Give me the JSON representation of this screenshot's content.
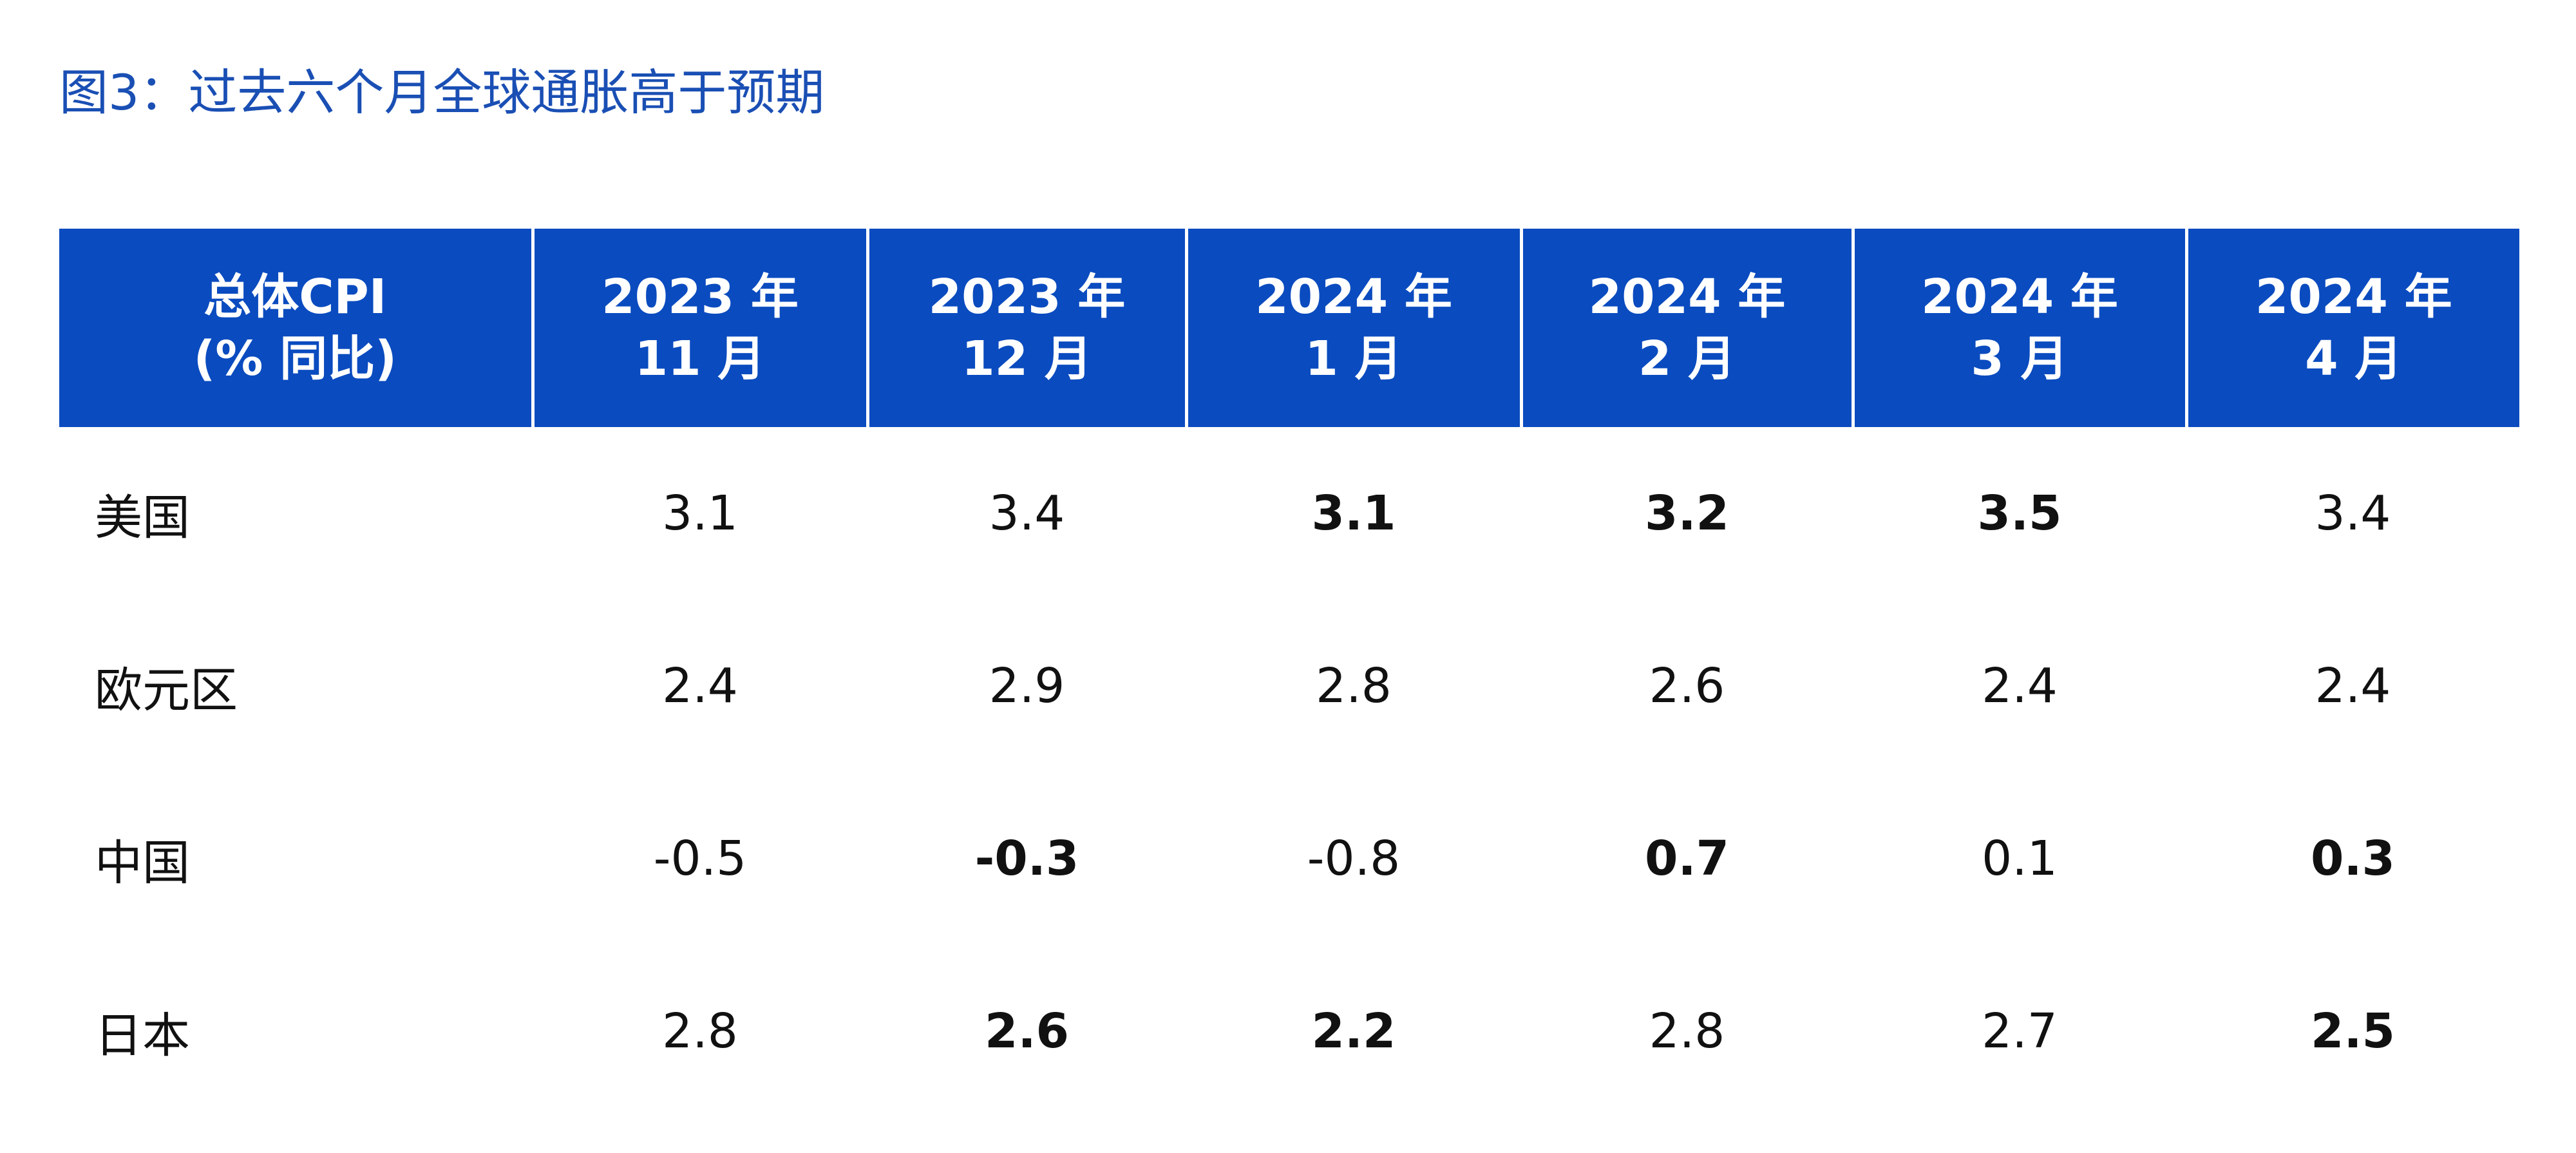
{
  "chart_data": {
    "type": "table",
    "title": "图3：过去六个月全球通胀高于预期",
    "header": {
      "label_col": [
        "总体CPI",
        "(% 同比)"
      ],
      "columns": [
        [
          "2023 年",
          "11 月"
        ],
        [
          "2023 年",
          "12 月"
        ],
        [
          "2024 年",
          "1 月"
        ],
        [
          "2024 年",
          "2 月"
        ],
        [
          "2024 年",
          "3 月"
        ],
        [
          "2024 年",
          "4 月"
        ]
      ]
    },
    "rows": [
      {
        "label": "美国",
        "values": [
          "3.1",
          "3.4",
          "3.1",
          "3.2",
          "3.5",
          "3.4"
        ],
        "bold": [
          false,
          false,
          true,
          true,
          true,
          false
        ]
      },
      {
        "label": "欧元区",
        "values": [
          "2.4",
          "2.9",
          "2.8",
          "2.6",
          "2.4",
          "2.4"
        ],
        "bold": [
          false,
          false,
          false,
          false,
          false,
          false
        ]
      },
      {
        "label": "中国",
        "values": [
          "-0.5",
          "-0.3",
          "-0.8",
          "0.7",
          "0.1",
          "0.3"
        ],
        "bold": [
          false,
          true,
          false,
          true,
          false,
          true
        ]
      },
      {
        "label": "日本",
        "values": [
          "2.8",
          "2.6",
          "2.2",
          "2.8",
          "2.7",
          "2.5"
        ],
        "bold": [
          false,
          true,
          true,
          false,
          false,
          true
        ]
      }
    ],
    "colors": {
      "header_bg": "#0a4bbf",
      "title": "#1a4fb4",
      "text": "#111111"
    }
  }
}
